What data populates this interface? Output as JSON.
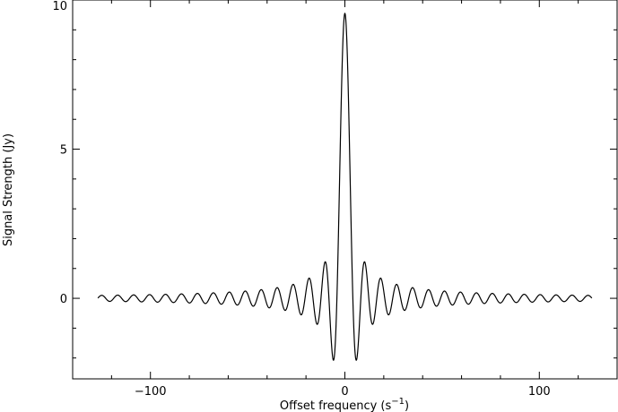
{
  "chart_data": {
    "type": "line",
    "title": "",
    "xlabel": "Offset frequency (s",
    "xlabel_sup": "−1",
    "xlabel_close": ")",
    "ylabel": "Signal Strength (Jy)",
    "xlim": [
      -140,
      140
    ],
    "ylim": [
      -2.7,
      10
    ],
    "x_ticks": [
      {
        "value": -100,
        "label": "−100"
      },
      {
        "value": 0,
        "label": "0"
      },
      {
        "value": 100,
        "label": "100"
      }
    ],
    "y_ticks": [
      {
        "value": 0,
        "label": "0"
      },
      {
        "value": 5,
        "label": "5"
      },
      {
        "value": 10,
        "label": "10"
      }
    ],
    "grid": false,
    "legend": "none",
    "series": [
      {
        "x_range": [
          -127,
          127
        ],
        "peak": 9.55,
        "first_null": 4.1,
        "description_model": "sinc",
        "color": "#000000"
      }
    ]
  }
}
